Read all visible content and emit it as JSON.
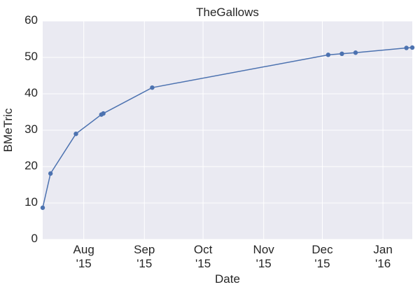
{
  "chart_data": {
    "type": "line",
    "title": "TheGallows",
    "xlabel": "Date",
    "ylabel": "BMeTric",
    "ylim": [
      0,
      60
    ],
    "xlim": [
      "2015-07-11",
      "2016-01-16"
    ],
    "grid": true,
    "legend": null,
    "yticks": [
      "0",
      "10",
      "20",
      "30",
      "40",
      "50",
      "60"
    ],
    "xticks": [
      {
        "month": "Aug",
        "year": "'15"
      },
      {
        "month": "Sep",
        "year": "'15"
      },
      {
        "month": "Oct",
        "year": "'15"
      },
      {
        "month": "Nov",
        "year": "'15"
      },
      {
        "month": "Dec",
        "year": "'15"
      },
      {
        "month": "Jan",
        "year": "'16"
      }
    ],
    "series": [
      {
        "name": "BMeTric",
        "color": "#4c72b0",
        "x": [
          "2015-07-11",
          "2015-07-15",
          "2015-07-28",
          "2015-08-10",
          "2015-08-11",
          "2015-09-05",
          "2015-12-04",
          "2015-12-11",
          "2015-12-18",
          "2016-01-13",
          "2016-01-16"
        ],
        "values": [
          8.7,
          18.1,
          29.0,
          34.3,
          34.6,
          41.7,
          50.7,
          51.0,
          51.3,
          52.6,
          52.7
        ]
      }
    ]
  },
  "colors": {
    "plot_bg": "#eaeaf2",
    "grid": "#ffffff",
    "line": "#4c72b0"
  }
}
